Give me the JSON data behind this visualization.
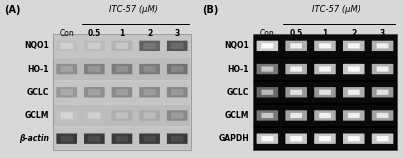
{
  "bg_color": "#d8d8d8",
  "fig_width": 4.04,
  "fig_height": 1.58,
  "panel_A": {
    "label": "(A)",
    "title": "ITC-57 (μM)",
    "col_labels": [
      "Con",
      "0.5",
      "1",
      "2",
      "3"
    ],
    "row_labels": [
      "NQO1",
      "HO-1",
      "GCLC",
      "GCLM",
      "β-actin"
    ],
    "panel_bg": "#c8c8c8",
    "row_separator_color": "#aaaaaa",
    "bands": [
      [
        0.3,
        0.32,
        0.35,
        0.72,
        0.78
      ],
      [
        0.52,
        0.58,
        0.6,
        0.62,
        0.65
      ],
      [
        0.48,
        0.52,
        0.54,
        0.55,
        0.56
      ],
      [
        0.28,
        0.3,
        0.38,
        0.4,
        0.55
      ],
      [
        0.92,
        0.92,
        0.92,
        0.92,
        0.92
      ]
    ]
  },
  "panel_B": {
    "label": "(B)",
    "title": "ITC-57 (μM)",
    "col_labels": [
      "Con",
      "0.5",
      "1",
      "2",
      "3"
    ],
    "row_labels": [
      "NQO1",
      "HO-1",
      "GCLC",
      "GCLM",
      "GAPDH"
    ],
    "panel_bg": "#111111",
    "row_bg": "#111111",
    "bands": [
      [
        0.8,
        0.68,
        0.72,
        0.72,
        0.68
      ],
      [
        0.45,
        0.68,
        0.72,
        0.78,
        0.68
      ],
      [
        0.38,
        0.58,
        0.58,
        0.68,
        0.58
      ],
      [
        0.45,
        0.62,
        0.68,
        0.68,
        0.62
      ],
      [
        0.78,
        0.78,
        0.78,
        0.78,
        0.78
      ]
    ]
  }
}
